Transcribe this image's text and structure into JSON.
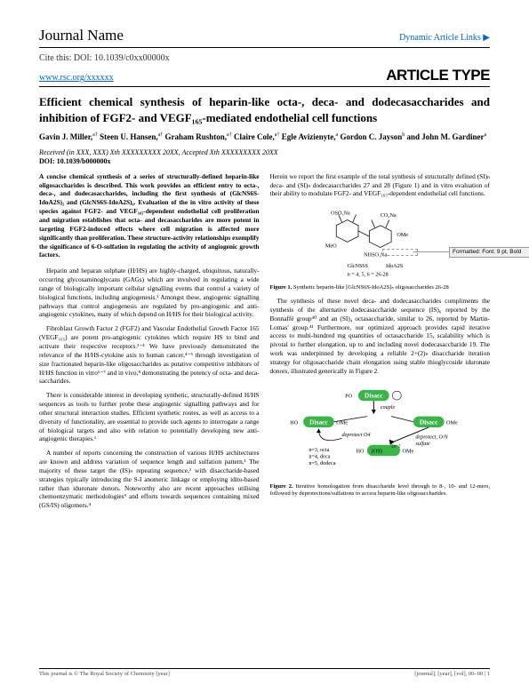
{
  "header": {
    "journal_name": "Journal Name",
    "dynamic_link": "Dynamic Article Links ▶"
  },
  "cite": "Cite this: DOI: 10.1039/c0xx00000x",
  "rsc_url": "www.rsc.org/xxxxxx",
  "article_type": "ARTICLE TYPE",
  "title": "Efficient chemical synthesis of heparin-like octa-, deca- and dodecasaccharides and inhibition of FGF2- and VEGF₁₆₅-mediated endothelial cell functions",
  "authors_html": "Gavin J. Miller,<sup>a†</sup> Steen U. Hansen,<sup>a†</sup> Graham Rushton,<sup>a†</sup> Claire Cole,<sup>a†</sup> Egle Avizienyte,<sup>a</sup> Gordon C. Jayson<sup>b</sup> and John M. Gardiner<sup>a</sup>",
  "received": "Received (in XXX, XXX) Xth XXXXXXXXX 20XX, Accepted Xth XXXXXXXXX 20XX",
  "doi": "DOI: 10.1039/b000000x",
  "abstract": "A concise chemical synthesis of a series of structurally-defined heparin-like oligosaccharides is described. This work provides an efficient entry to octa-, deca-, and dodecasaccharides, including the first synthesis of (GlcNS6S-IdoA2S)₅ and (GlcNS6S-IdoA2S)₆. Evaluation of the in vitro activity of these species against FGF2- and VEGF₁₆₅-dependent endothelial cell proliferation and migration establishes that octa- and decasaccharides are more potent in targeting FGF2-induced effects where cell migration is affected more significantly than proliferation. These structure-activity relationships exemplify the significance of 6-O-sulfation in regulating the activity of angiogenic growth factors.",
  "para1": "Heparin and heparan sulphate (H/HS) are highly-charged, ubiquitous, naturally-occurring glycosaminoglycans (GAGs) which are involved in regulating a wide range of biologically important cellular signalling events that control a variety of biological functions, including angiogenesis.¹ Amongst these, angiogenic signalling pathways that control angiogenesis are regulated by pro-angiogenic and anti-angiogenic cytokines, many of which depend on H/HS for their biological activity.",
  "para2": "Fibroblast Growth Factor 2 (FGF2) and Vascular Endothelial Growth Factor 165 (VEGF₁₆₅) are potent pro-angiogenic cytokines which require HS to bind and activate their respective receptors.²⁻⁴ We have previously demonstrated the relevance of the H/HS-cytokine axis to human cancer,⁴⁻⁵ through investigation of size fractionated heparin-like oligosaccharides as putative competitive inhibitors of H/HS function in vitro⁶⁻⁷ and in vivo,⁸ demonstrating the potency of octa- and deca-saccharides.",
  "para3": "There is considerable interest in developing synthetic, structurally-defined H/HS sequences as tools to further probe these angiogenic signalling pathways and for other structural interaction studies. Efficient synthetic routes, as well as access to a diversity of functionality, are essential to provide such agents to interrogate a range of biological targets and also with relation to potentially developing new anti-angiogenic therapies.¹",
  "para4": "A number of reports concerning the construction of various H/HS architectures are known and address variation of sequence length and sulfation pattern.¹ The majority of these target the (IS)ₙ repeating sequence,² with disaccharide-based strategies typically introducing the S-I anomeric linkage or employing idito-based rather than iduronate donors. Noteworthy also are recent approaches utilising chemoenzymatic methodologies⁹ and efforts towards sequences containing mixed (GS/IS) oligomers.⁴",
  "col2_intro": "Herein we report the first example of the total synthesis of structurally defined (SI)ₙ deca- and (SI)ₙ dodecasaccharides 27 and 28 (Figure 1) and in vitro evaluation of their ability to modulate FGF2- and VEGF₁₆₅-dependent endothelial cell functions.",
  "fig1_caption_label": "Figure 1.",
  "fig1_caption_text": " Synthetic heparin-like [GlcNS6S-IdoA2S]ₙ oligosaccharides 26-28",
  "col2_para2": "The synthesis of these novel deca- and dodecasaccharides compliments the synthesis of the alternative dodecasaccharide sequence (IS)₆ reported by the Bonnaffé group⁴⁰ and an (SI)₄ octasaccharide, similar to 26, reported by Martin-Lomas' group.⁴¹ Furthermore, our optimized approach provides rapid iterative access to multi-hundred mg quantities of octasaccharide 15, scalability which is pivotal to further elongation, up to and including novel dodecasaccharide 19. The work was underpinned by developing a reliable 2+(2)ₙ disaccharide iteration strategy for oligosaccharide chain elongation using stable thioglycoside iduronate donors, illustrated generically in Figure 2.",
  "fig2_caption_label": "Figure 2.",
  "fig2_caption_text": " Iterative homologation from disaccharide level through to 8-, 10- and 12-mers, followed by deprotections/sulfations to access heparin-like oligosaccharides.",
  "footer_left": "This journal is © The Royal Society of Chemistry [year]",
  "footer_right": "[journal], [year], [vol], 00–00 | 1",
  "format_comment": "Formatted: Font: 9 pt, Bold",
  "line_numbers": [
    "5",
    "10",
    "15",
    "20",
    "25",
    "30",
    "35",
    "40",
    "45",
    "50",
    "55",
    "60",
    "65",
    "70",
    "75",
    "80",
    "85",
    "90"
  ],
  "colors": {
    "link": "#0066cc",
    "disacc_fill": "#3bb44a",
    "text": "#000000"
  }
}
